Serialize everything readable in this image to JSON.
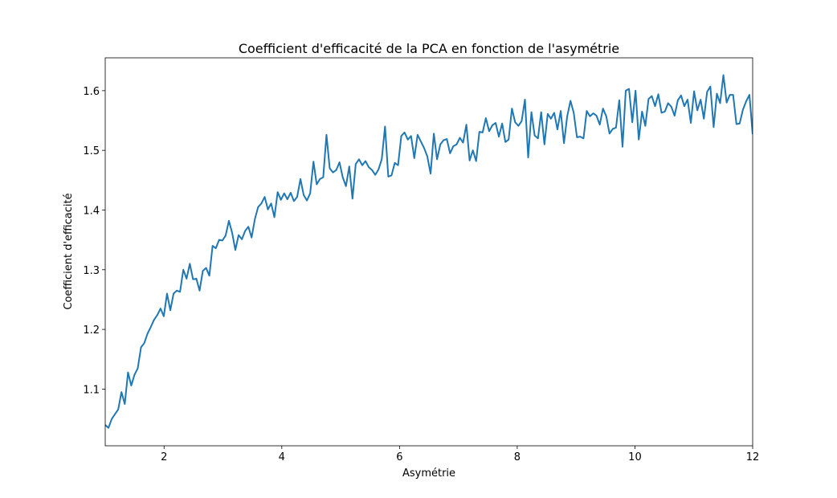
{
  "chart_data": {
    "type": "line",
    "title": "Coefficient d'efficacité de la PCA en fonction de l'asymétrie",
    "x_label": "Asymétrie",
    "y_label": "Coefficient d'efficacité",
    "color": "#1f77b4",
    "xlim": [
      1,
      12
    ],
    "xticks": [
      2,
      4,
      6,
      8,
      10,
      12
    ],
    "ylim": [
      1.005,
      1.655
    ],
    "yticks": [
      1.1,
      1.2,
      1.3,
      1.4,
      1.5,
      1.6
    ],
    "x": [
      1.0,
      1.055,
      1.111,
      1.166,
      1.221,
      1.276,
      1.332,
      1.387,
      1.442,
      1.497,
      1.553,
      1.608,
      1.663,
      1.719,
      1.774,
      1.829,
      1.884,
      1.94,
      1.995,
      2.05,
      2.106,
      2.161,
      2.216,
      2.271,
      2.327,
      2.382,
      2.437,
      2.492,
      2.548,
      2.603,
      2.658,
      2.714,
      2.769,
      2.824,
      2.879,
      2.935,
      2.99,
      3.045,
      3.101,
      3.156,
      3.211,
      3.266,
      3.322,
      3.377,
      3.432,
      3.487,
      3.543,
      3.598,
      3.653,
      3.709,
      3.764,
      3.819,
      3.874,
      3.93,
      3.985,
      4.04,
      4.095,
      4.151,
      4.206,
      4.261,
      4.317,
      4.372,
      4.427,
      4.482,
      4.538,
      4.593,
      4.648,
      4.704,
      4.759,
      4.814,
      4.869,
      4.925,
      4.98,
      5.035,
      5.09,
      5.146,
      5.201,
      5.256,
      5.312,
      5.367,
      5.422,
      5.477,
      5.533,
      5.588,
      5.643,
      5.698,
      5.754,
      5.809,
      5.864,
      5.92,
      5.975,
      6.03,
      6.085,
      6.141,
      6.196,
      6.251,
      6.307,
      6.362,
      6.417,
      6.472,
      6.528,
      6.583,
      6.638,
      6.693,
      6.749,
      6.804,
      6.859,
      6.915,
      6.97,
      7.025,
      7.08,
      7.136,
      7.191,
      7.246,
      7.302,
      7.357,
      7.412,
      7.467,
      7.523,
      7.578,
      7.633,
      7.688,
      7.744,
      7.799,
      7.854,
      7.91,
      7.965,
      8.02,
      8.075,
      8.131,
      8.186,
      8.241,
      8.296,
      8.352,
      8.407,
      8.462,
      8.518,
      8.573,
      8.628,
      8.683,
      8.739,
      8.794,
      8.849,
      8.905,
      8.96,
      9.015,
      9.07,
      9.126,
      9.181,
      9.236,
      9.291,
      9.347,
      9.402,
      9.457,
      9.513,
      9.568,
      9.623,
      9.678,
      9.734,
      9.789,
      9.844,
      9.899,
      9.955,
      10.01,
      10.065,
      10.121,
      10.176,
      10.231,
      10.286,
      10.342,
      10.397,
      10.452,
      10.508,
      10.563,
      10.618,
      10.673,
      10.729,
      10.784,
      10.839,
      10.894,
      10.95,
      11.005,
      11.06,
      11.116,
      11.171,
      11.226,
      11.281,
      11.337,
      11.392,
      11.447,
      11.503,
      11.558,
      11.613,
      11.668,
      11.724,
      11.779,
      11.834,
      11.889,
      11.945,
      12.0
    ],
    "values": [
      1.04,
      1.035,
      1.05,
      1.058,
      1.066,
      1.095,
      1.075,
      1.128,
      1.106,
      1.124,
      1.135,
      1.17,
      1.177,
      1.193,
      1.204,
      1.216,
      1.224,
      1.235,
      1.222,
      1.26,
      1.232,
      1.26,
      1.265,
      1.263,
      1.3,
      1.285,
      1.31,
      1.284,
      1.285,
      1.265,
      1.298,
      1.303,
      1.29,
      1.34,
      1.336,
      1.35,
      1.349,
      1.357,
      1.382,
      1.362,
      1.333,
      1.358,
      1.351,
      1.365,
      1.372,
      1.354,
      1.385,
      1.405,
      1.411,
      1.422,
      1.401,
      1.411,
      1.388,
      1.43,
      1.417,
      1.428,
      1.418,
      1.429,
      1.415,
      1.422,
      1.452,
      1.425,
      1.416,
      1.428,
      1.481,
      1.443,
      1.452,
      1.455,
      1.526,
      1.47,
      1.463,
      1.467,
      1.48,
      1.455,
      1.44,
      1.473,
      1.419,
      1.477,
      1.485,
      1.475,
      1.482,
      1.472,
      1.467,
      1.459,
      1.468,
      1.485,
      1.54,
      1.456,
      1.458,
      1.479,
      1.475,
      1.524,
      1.53,
      1.518,
      1.524,
      1.487,
      1.526,
      1.515,
      1.504,
      1.49,
      1.461,
      1.528,
      1.485,
      1.51,
      1.517,
      1.519,
      1.495,
      1.507,
      1.51,
      1.521,
      1.513,
      1.543,
      1.483,
      1.5,
      1.482,
      1.531,
      1.53,
      1.554,
      1.532,
      1.542,
      1.546,
      1.523,
      1.545,
      1.514,
      1.518,
      1.57,
      1.547,
      1.541,
      1.549,
      1.585,
      1.488,
      1.564,
      1.525,
      1.52,
      1.564,
      1.51,
      1.561,
      1.553,
      1.563,
      1.535,
      1.566,
      1.512,
      1.557,
      1.583,
      1.563,
      1.522,
      1.523,
      1.52,
      1.566,
      1.557,
      1.562,
      1.558,
      1.543,
      1.57,
      1.557,
      1.528,
      1.536,
      1.538,
      1.584,
      1.506,
      1.6,
      1.603,
      1.547,
      1.6,
      1.518,
      1.565,
      1.541,
      1.586,
      1.591,
      1.574,
      1.594,
      1.563,
      1.565,
      1.579,
      1.573,
      1.558,
      1.584,
      1.592,
      1.574,
      1.585,
      1.546,
      1.599,
      1.567,
      1.585,
      1.553,
      1.598,
      1.607,
      1.539,
      1.595,
      1.579,
      1.626,
      1.58,
      1.593,
      1.593,
      1.544,
      1.545,
      1.568,
      1.582,
      1.593,
      1.527
    ]
  }
}
